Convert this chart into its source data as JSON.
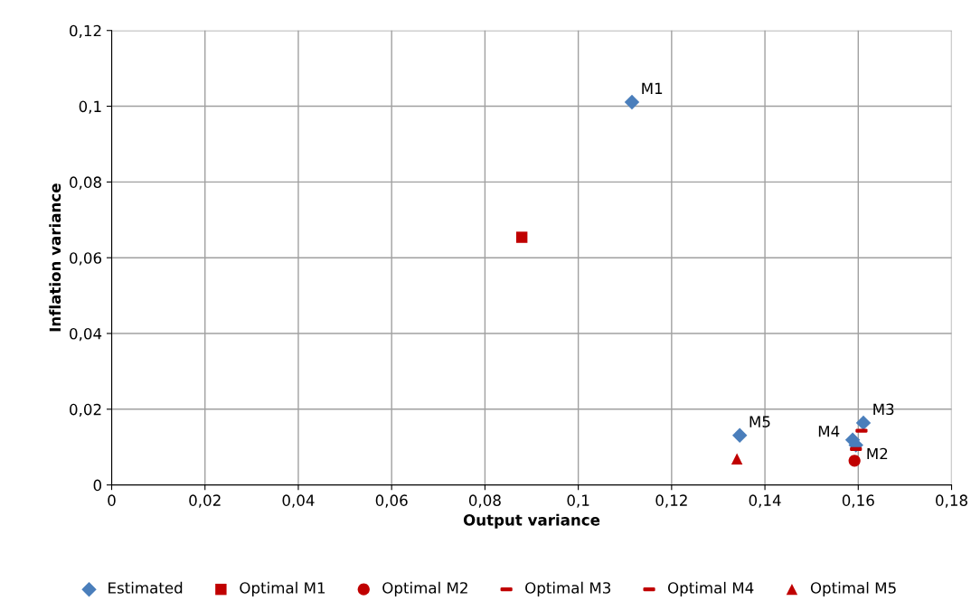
{
  "chart_data": {
    "type": "scatter",
    "xlabel": "Output variance",
    "ylabel": "Inflation variance",
    "xlim": [
      0,
      0.18
    ],
    "xticks": [
      0,
      {
        "value": 0.02,
        "label": "0,02"
      },
      {
        "value": 0.04,
        "label": "0,04"
      },
      {
        "value": 0.06,
        "label": "0,06"
      },
      {
        "value": 0.08,
        "label": "0,08"
      },
      {
        "value": 0.1,
        "label": "0,1"
      },
      {
        "value": 0.12,
        "label": "0,12"
      },
      {
        "value": 0.14,
        "label": "0,14"
      },
      {
        "value": 0.16,
        "label": "0,16"
      },
      {
        "value": 0.18,
        "label": "0,18"
      }
    ],
    "ylim": [
      0,
      0.12
    ],
    "yticks": [
      0,
      {
        "value": 0.02,
        "label": "0,02"
      },
      {
        "value": 0.04,
        "label": "0,04"
      },
      {
        "value": 0.06,
        "label": "0,06"
      },
      {
        "value": 0.08,
        "label": "0,08"
      },
      {
        "value": 0.1,
        "label": "0,1"
      },
      {
        "value": 0.12,
        "label": "0,12"
      }
    ],
    "grid": true,
    "legend": "bottom",
    "series": [
      {
        "name": "Estimated",
        "color": "#4a7ebb",
        "marker": "diamond",
        "x": [
          0.1115,
          0.1595,
          0.1611,
          0.1588,
          0.1346
        ],
        "values": [
          0.1011,
          0.0105,
          0.0164,
          0.0119,
          0.0131
        ]
      },
      {
        "name": "Optimal M1",
        "color": "#c00000",
        "marker": "square",
        "x": [
          0.0879
        ],
        "values": [
          0.0654
        ]
      },
      {
        "name": "Optimal M2",
        "color": "#c00000",
        "marker": "circle",
        "x": [
          0.1592
        ],
        "values": [
          0.0064
        ]
      },
      {
        "name": "Optimal M3",
        "color": "#c00000",
        "x": [
          0.1607
        ],
        "values": [
          0.0143
        ]
      },
      {
        "name": "Optimal M4",
        "color": "#c00000",
        "x": [
          0.1595
        ],
        "values": [
          0.0095
        ]
      },
      {
        "name": "Optimal M5",
        "color": "#c00000",
        "marker": "triangle",
        "x": [
          0.134
        ],
        "values": [
          0.0069
        ]
      }
    ],
    "annotations": [
      {
        "text": "M1",
        "x": 0.1115,
        "y": 0.1011
      },
      {
        "text": "M2",
        "x": 0.1595,
        "y": 0.0105
      },
      {
        "text": "M3",
        "x": 0.1611,
        "y": 0.0164
      },
      {
        "text": "M4",
        "x": 0.1588,
        "y": 0.0119
      },
      {
        "text": "M5",
        "x": 0.1346,
        "y": 0.0131
      }
    ]
  }
}
